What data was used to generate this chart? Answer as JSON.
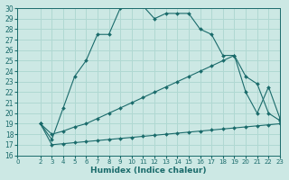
{
  "xlabel": "Humidex (Indice chaleur)",
  "ylabel": "",
  "bg_color": "#cce8e4",
  "grid_color": "#b0d8d2",
  "line_color": "#1a6b6b",
  "xlim": [
    0,
    23
  ],
  "ylim": [
    16,
    30
  ],
  "xticks": [
    0,
    2,
    3,
    4,
    5,
    6,
    7,
    8,
    9,
    10,
    11,
    12,
    13,
    14,
    15,
    16,
    17,
    18,
    19,
    20,
    21,
    22,
    23
  ],
  "yticks": [
    16,
    17,
    18,
    19,
    20,
    21,
    22,
    23,
    24,
    25,
    26,
    27,
    28,
    29,
    30
  ],
  "curve1_x": [
    2,
    3,
    4,
    5,
    6,
    7,
    8,
    9,
    10,
    11,
    12,
    13,
    14,
    15,
    16,
    17,
    18,
    19,
    20,
    21,
    22,
    23
  ],
  "curve1_y": [
    19,
    17.5,
    20.5,
    23.5,
    25.0,
    27.5,
    27.5,
    30.0,
    30.2,
    30.2,
    29.0,
    29.5,
    29.5,
    29.5,
    28.0,
    27.5,
    25.5,
    25.5,
    22.0,
    20.0,
    22.5,
    19.5
  ],
  "curve2_x": [
    2,
    3,
    4,
    5,
    6,
    7,
    8,
    9,
    10,
    11,
    12,
    13,
    14,
    15,
    16,
    17,
    18,
    19,
    20,
    21,
    22,
    23
  ],
  "curve2_y": [
    19,
    18.0,
    18.3,
    18.7,
    19.0,
    19.5,
    20.0,
    20.5,
    21.0,
    21.5,
    22.0,
    22.5,
    23.0,
    23.5,
    24.0,
    24.5,
    25.0,
    25.5,
    23.5,
    22.8,
    20.0,
    19.3
  ],
  "curve3_x": [
    2,
    3,
    4,
    5,
    6,
    7,
    8,
    9,
    10,
    11,
    12,
    13,
    14,
    15,
    16,
    17,
    18,
    19,
    20,
    21,
    22,
    23
  ],
  "curve3_y": [
    19,
    17.0,
    17.1,
    17.2,
    17.3,
    17.4,
    17.5,
    17.6,
    17.7,
    17.8,
    17.9,
    18.0,
    18.1,
    18.2,
    18.3,
    18.4,
    18.5,
    18.6,
    18.7,
    18.8,
    18.9,
    19.0
  ]
}
